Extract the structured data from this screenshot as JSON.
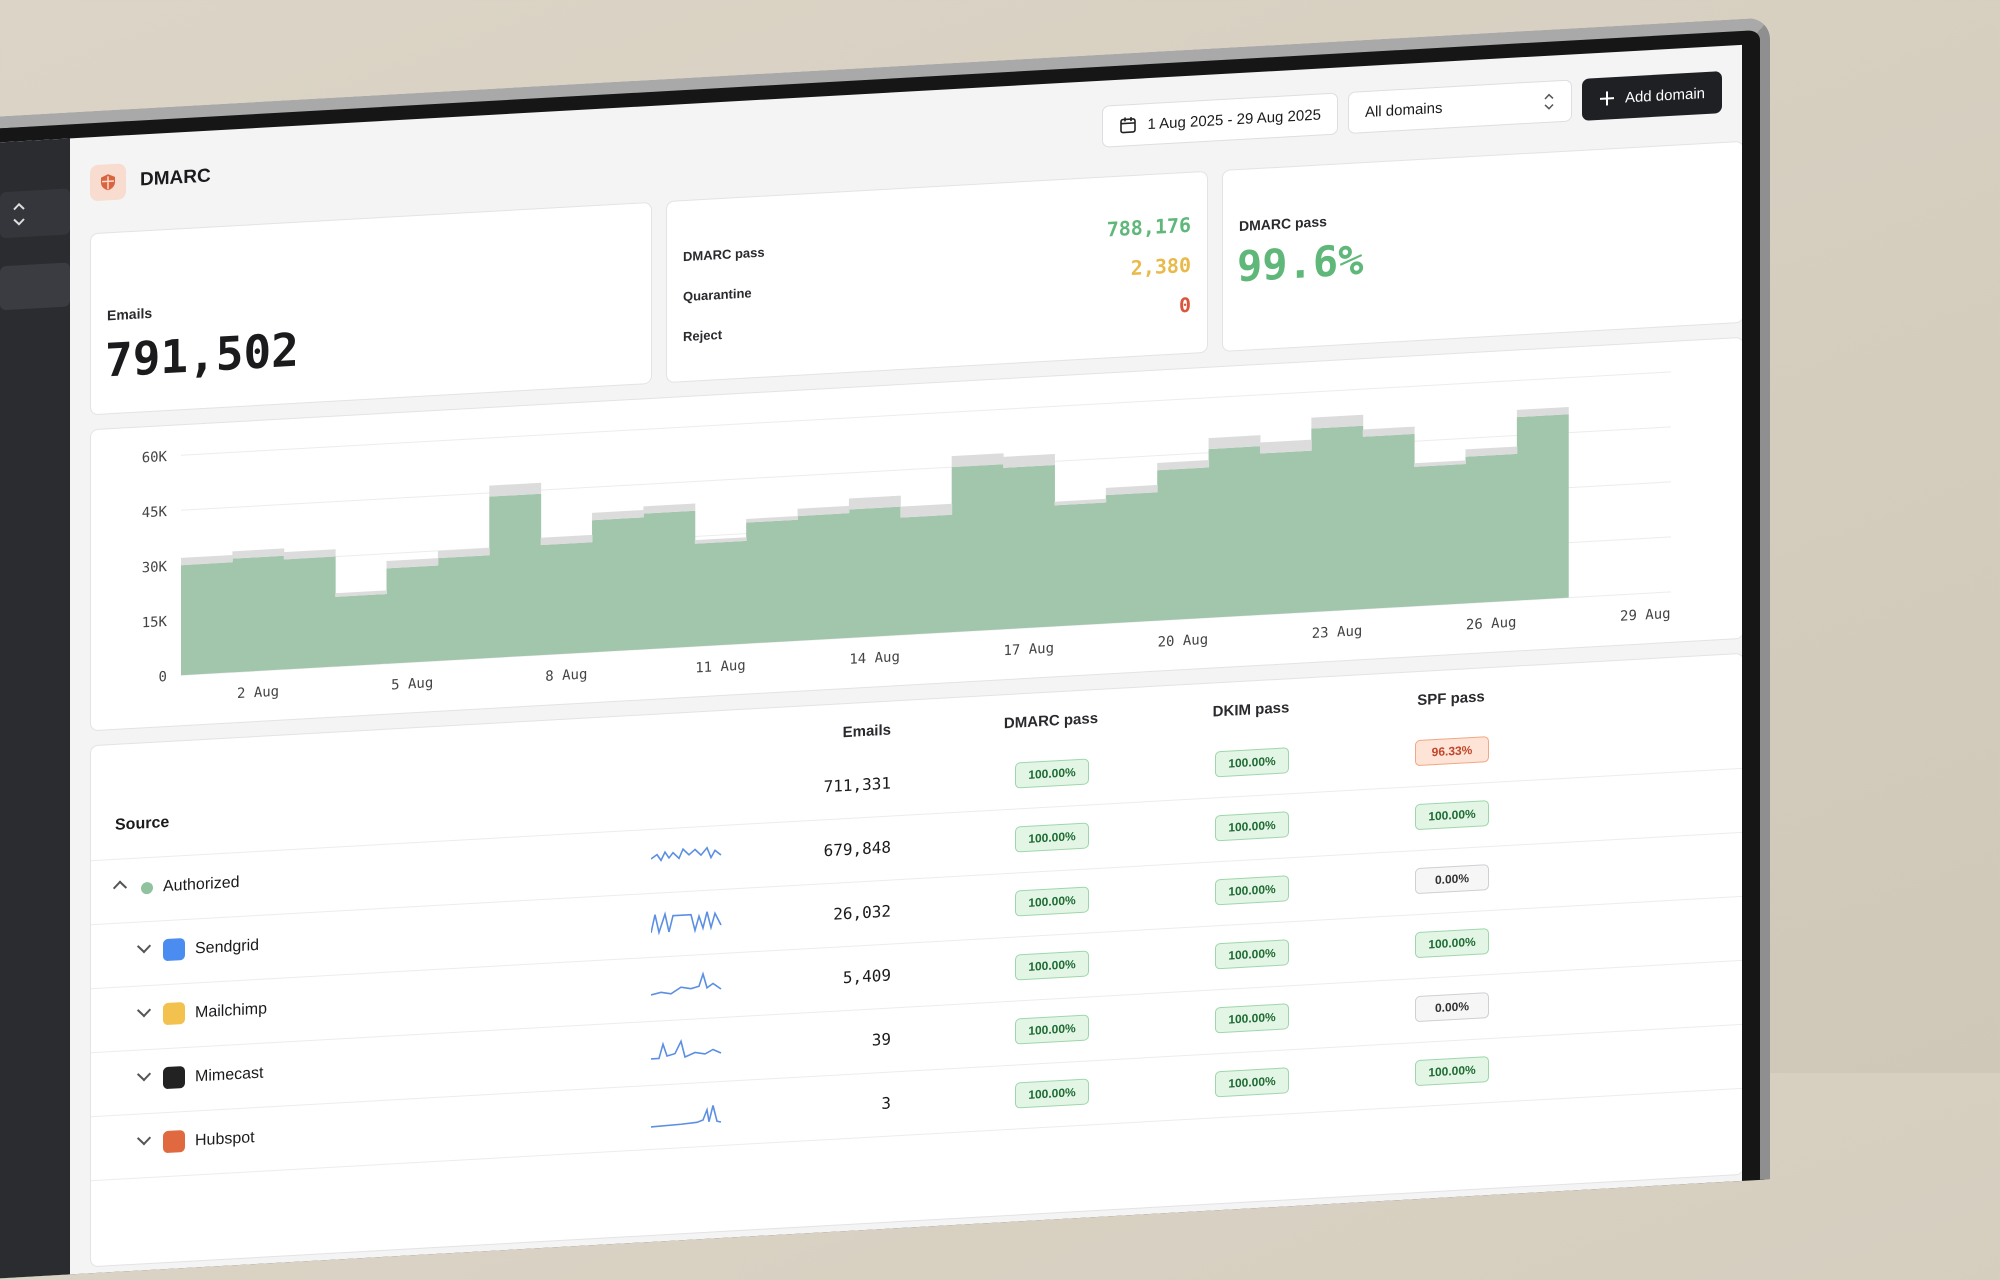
{
  "header": {
    "date_range": "1 Aug 2025 - 29 Aug 2025",
    "domain_select": "All domains",
    "add_button": "Add domain"
  },
  "title": "DMARC",
  "stats": {
    "emails": {
      "label": "Emails",
      "value": "791,502"
    },
    "breakdown": [
      {
        "label": "DMARC pass",
        "value": "788,176",
        "color": "#5fb87a"
      },
      {
        "label": "Quarantine",
        "value": "2,380",
        "color": "#e9b949"
      },
      {
        "label": "Reject",
        "value": "0",
        "color": "#d9553b"
      }
    ],
    "pass_rate": {
      "label": "DMARC pass",
      "value": "99.6%",
      "color": "#5fb87a"
    }
  },
  "chart_data": {
    "type": "bar",
    "stacked": true,
    "categories": [
      null,
      "2 Aug",
      null,
      null,
      "5 Aug",
      null,
      null,
      "8 Aug",
      null,
      null,
      "11 Aug",
      null,
      null,
      "14 Aug",
      null,
      null,
      "17 Aug",
      null,
      null,
      "20 Aug",
      null,
      null,
      "23 Aug",
      null,
      null,
      "26 Aug",
      null,
      null,
      "29 Aug"
    ],
    "series": [
      {
        "color": "#a1c6ac",
        "values": [
          30000,
          31000,
          30000,
          19000,
          26000,
          28000,
          44000,
          30000,
          36000,
          37000,
          28000,
          33000,
          34000,
          35000,
          32000,
          45000,
          44000,
          33000,
          35000,
          41000,
          46000,
          44000,
          50000,
          47000,
          38000,
          40000,
          50000,
          null,
          null
        ]
      },
      {
        "color": "#dcdcdc",
        "values": [
          2000,
          2000,
          2000,
          1000,
          2000,
          2000,
          3000,
          2000,
          2000,
          2000,
          1000,
          1000,
          2000,
          3000,
          3000,
          3000,
          3000,
          1000,
          2000,
          2000,
          3000,
          3000,
          3000,
          2000,
          1000,
          2000,
          2000,
          null,
          null
        ]
      }
    ],
    "ylim": [
      0,
      60000
    ],
    "yticks": [
      {
        "value": 0,
        "label": "0"
      },
      {
        "value": 15000,
        "label": "15K"
      },
      {
        "value": 30000,
        "label": "30K"
      },
      {
        "value": 45000,
        "label": "45K"
      },
      {
        "value": 60000,
        "label": "60K"
      }
    ],
    "grid": true
  },
  "table": {
    "columns": [
      "Emails",
      "DMARC pass",
      "DKIM pass",
      "SPF pass"
    ],
    "rows": [
      [
        "Source",
        "711,331",
        "100.00%",
        "100.00%",
        "96.33%"
      ],
      [
        "Authorized",
        "679,848",
        "100.00%",
        "100.00%",
        "100.00%"
      ],
      [
        "Sendgrid",
        "26,032",
        "100.00%",
        "100.00%",
        "0.00%"
      ],
      [
        "Mailchimp",
        "5,409",
        "100.00%",
        "100.00%",
        "100.00%"
      ],
      [
        "Mimecast",
        "39",
        "100.00%",
        "100.00%",
        "0.00%"
      ],
      [
        "Hubspot",
        "3",
        "100.00%",
        "100.00%",
        "100.00%"
      ]
    ]
  }
}
